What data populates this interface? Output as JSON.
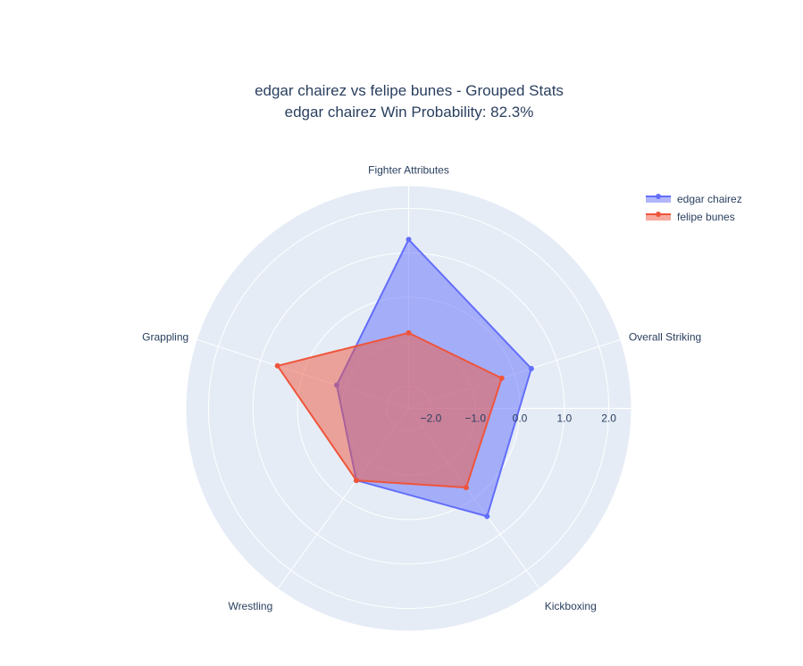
{
  "chart_data": {
    "type": "radar",
    "title": "edgar chairez vs felipe bunes - Grouped Stats",
    "subtitle": "edgar chairez Win Probability: 82.3%",
    "categories": [
      "Fighter Attributes",
      "Overall Striking",
      "Kickboxing",
      "Wrestling",
      "Grappling"
    ],
    "radial_ticks": [
      "−2.0",
      "−1.0",
      "0.0",
      "1.0",
      "2.0"
    ],
    "radial_tick_values": [
      -2.0,
      -1.0,
      0.0,
      1.0,
      2.0
    ],
    "rlim": [
      -2.5,
      2.5
    ],
    "series": [
      {
        "name": "edgar chairez",
        "color": "#636efa",
        "values": [
          1.3,
          0.4,
          0.5,
          -0.5,
          -0.8
        ]
      },
      {
        "name": "felipe bunes",
        "color": "#ef553b",
        "values": [
          -0.8,
          -0.3,
          -0.3,
          -0.5,
          0.6
        ]
      }
    ],
    "legend_position": "top-right",
    "grid": true,
    "background_color": "#e5ecf6"
  }
}
